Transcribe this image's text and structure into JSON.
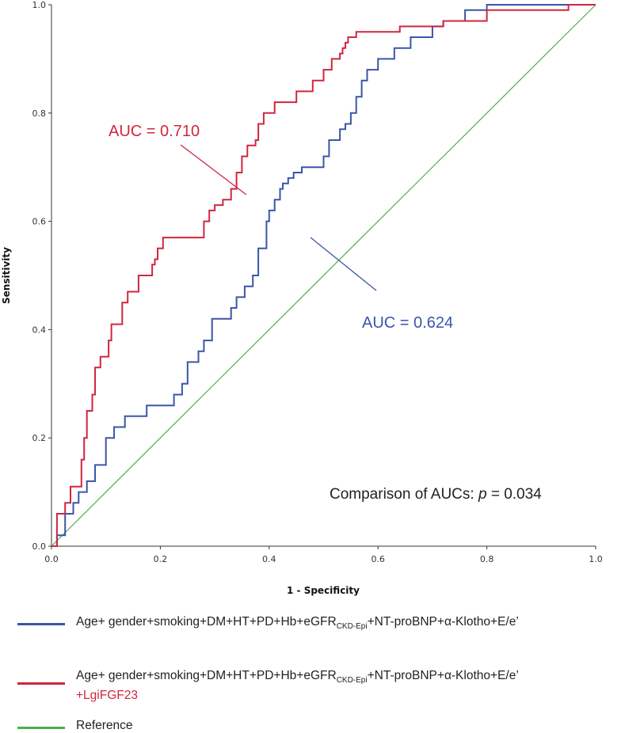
{
  "chart_data": {
    "type": "line",
    "xlabel": "1 - Specificity",
    "ylabel": "Sensitivity",
    "xlim": [
      0,
      1
    ],
    "ylim": [
      0,
      1
    ],
    "xticks": [
      "0.0",
      "0.2",
      "0.4",
      "0.6",
      "0.8",
      "1.0"
    ],
    "yticks": [
      "0.0",
      "0.2",
      "0.4",
      "0.6",
      "0.8",
      "1.0"
    ],
    "grid": false,
    "legend_position": "bottom",
    "series": [
      {
        "name": "Age+ gender+smoking+DM+HT+PD+Hb+eGFR(CKD-Epi)+NT-proBNP+α-Klotho+E/e’",
        "color": "#3a56a8",
        "auc_label": "AUC = 0.624",
        "x": [
          0,
          0.01,
          0.01,
          0.025,
          0.025,
          0.04,
          0.04,
          0.05,
          0.05,
          0.065,
          0.065,
          0.08,
          0.08,
          0.1,
          0.1,
          0.115,
          0.115,
          0.135,
          0.135,
          0.175,
          0.175,
          0.225,
          0.225,
          0.24,
          0.24,
          0.25,
          0.25,
          0.27,
          0.27,
          0.28,
          0.28,
          0.295,
          0.295,
          0.33,
          0.33,
          0.34,
          0.34,
          0.355,
          0.355,
          0.37,
          0.37,
          0.38,
          0.38,
          0.395,
          0.395,
          0.4,
          0.4,
          0.41,
          0.41,
          0.42,
          0.42,
          0.425,
          0.425,
          0.435,
          0.435,
          0.445,
          0.445,
          0.46,
          0.46,
          0.5,
          0.5,
          0.51,
          0.51,
          0.53,
          0.53,
          0.54,
          0.54,
          0.55,
          0.55,
          0.56,
          0.56,
          0.57,
          0.57,
          0.58,
          0.58,
          0.6,
          0.6,
          0.63,
          0.63,
          0.66,
          0.66,
          0.7,
          0.7,
          0.72,
          0.72,
          0.76,
          0.76,
          0.8,
          0.8,
          1.0
        ],
        "y": [
          0,
          0,
          0.02,
          0.02,
          0.06,
          0.06,
          0.08,
          0.08,
          0.1,
          0.1,
          0.12,
          0.12,
          0.15,
          0.15,
          0.2,
          0.2,
          0.22,
          0.22,
          0.24,
          0.24,
          0.26,
          0.26,
          0.28,
          0.28,
          0.3,
          0.3,
          0.34,
          0.34,
          0.36,
          0.36,
          0.38,
          0.38,
          0.42,
          0.42,
          0.44,
          0.44,
          0.46,
          0.46,
          0.48,
          0.48,
          0.5,
          0.5,
          0.55,
          0.55,
          0.6,
          0.6,
          0.62,
          0.62,
          0.64,
          0.64,
          0.66,
          0.66,
          0.67,
          0.67,
          0.68,
          0.68,
          0.69,
          0.69,
          0.7,
          0.7,
          0.72,
          0.72,
          0.75,
          0.75,
          0.77,
          0.77,
          0.78,
          0.78,
          0.8,
          0.8,
          0.83,
          0.83,
          0.86,
          0.86,
          0.88,
          0.88,
          0.9,
          0.9,
          0.92,
          0.92,
          0.94,
          0.94,
          0.96,
          0.96,
          0.97,
          0.97,
          0.99,
          0.99,
          1.0,
          1.0
        ]
      },
      {
        "name": "Age+ gender+smoking+DM+HT+PD+Hb+eGFR(CKD-Epi)+NT-proBNP+α-Klotho+E/e’ +LgiFGF23",
        "color": "#d0263f",
        "auc_label": "AUC = 0.710",
        "x": [
          0,
          0.01,
          0.01,
          0.025,
          0.025,
          0.035,
          0.035,
          0.055,
          0.055,
          0.06,
          0.06,
          0.065,
          0.065,
          0.075,
          0.075,
          0.08,
          0.08,
          0.09,
          0.09,
          0.105,
          0.105,
          0.11,
          0.11,
          0.13,
          0.13,
          0.14,
          0.14,
          0.16,
          0.16,
          0.185,
          0.185,
          0.19,
          0.19,
          0.195,
          0.195,
          0.205,
          0.205,
          0.28,
          0.28,
          0.29,
          0.29,
          0.3,
          0.3,
          0.315,
          0.315,
          0.33,
          0.33,
          0.34,
          0.34,
          0.35,
          0.35,
          0.36,
          0.36,
          0.375,
          0.375,
          0.38,
          0.38,
          0.39,
          0.39,
          0.41,
          0.41,
          0.45,
          0.45,
          0.48,
          0.48,
          0.5,
          0.5,
          0.515,
          0.515,
          0.53,
          0.53,
          0.535,
          0.535,
          0.54,
          0.54,
          0.545,
          0.545,
          0.56,
          0.56,
          0.64,
          0.64,
          0.72,
          0.72,
          0.8,
          0.8,
          0.95,
          0.95,
          1.0
        ],
        "y": [
          0,
          0,
          0.06,
          0.06,
          0.08,
          0.08,
          0.11,
          0.11,
          0.16,
          0.16,
          0.2,
          0.2,
          0.25,
          0.25,
          0.28,
          0.28,
          0.33,
          0.33,
          0.35,
          0.35,
          0.38,
          0.38,
          0.41,
          0.41,
          0.45,
          0.45,
          0.47,
          0.47,
          0.5,
          0.5,
          0.52,
          0.52,
          0.53,
          0.53,
          0.55,
          0.55,
          0.57,
          0.57,
          0.6,
          0.6,
          0.62,
          0.62,
          0.63,
          0.63,
          0.64,
          0.64,
          0.66,
          0.66,
          0.69,
          0.69,
          0.72,
          0.72,
          0.74,
          0.74,
          0.75,
          0.75,
          0.78,
          0.78,
          0.8,
          0.8,
          0.82,
          0.82,
          0.84,
          0.84,
          0.86,
          0.86,
          0.88,
          0.88,
          0.9,
          0.9,
          0.91,
          0.91,
          0.92,
          0.92,
          0.93,
          0.93,
          0.94,
          0.94,
          0.95,
          0.95,
          0.96,
          0.96,
          0.97,
          0.97,
          0.99,
          0.99,
          1.0,
          1.0
        ]
      },
      {
        "name": "Reference",
        "color": "#4caf50",
        "x": [
          0,
          1
        ],
        "y": [
          0,
          1
        ]
      }
    ],
    "annotations": {
      "comparison_prefix": "Comparison of AUCs: ",
      "comparison_p": "p",
      "comparison_suffix": " = 0.034"
    }
  },
  "legend": {
    "blue": {
      "prefix": "Age+ gender+smoking+DM+HT+PD+Hb+eGFR",
      "sub": "CKD-Epi",
      "suffix": "+NT-proBNP+α-Klotho+E/e’"
    },
    "red": {
      "prefix": "Age+ gender+smoking+DM+HT+PD+Hb+eGFR",
      "sub": "CKD-Epi",
      "suffix": "+NT-proBNP+α-Klotho+E/e’",
      "extra": "+LgiFGF23"
    },
    "reference": "Reference"
  }
}
